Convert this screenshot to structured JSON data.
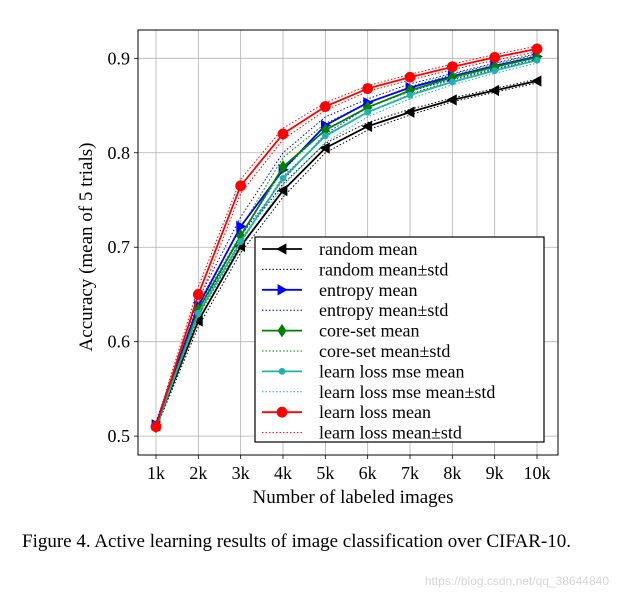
{
  "chart_data": {
    "type": "line",
    "title": "",
    "xlabel": "Number of labeled images",
    "ylabel": "Accuracy (mean of 5 trials)",
    "categories": [
      "1k",
      "2k",
      "3k",
      "4k",
      "5k",
      "6k",
      "7k",
      "8k",
      "9k",
      "10k"
    ],
    "ylim": [
      0.48,
      0.93
    ],
    "yticks": [
      0.5,
      0.6,
      0.7,
      0.8,
      0.9
    ],
    "ytick_labels": [
      "0.5",
      "0.6",
      "0.7",
      "0.8",
      "0.9"
    ],
    "grid": true,
    "legend_position": "lower-right",
    "series": [
      {
        "name": "random mean",
        "std_name": "random mean±std",
        "color": "#000000",
        "marker": "triangle-left",
        "values": [
          0.511,
          0.622,
          0.701,
          0.76,
          0.805,
          0.828,
          0.843,
          0.856,
          0.866,
          0.876
        ],
        "upper": [
          0.514,
          0.628,
          0.708,
          0.767,
          0.81,
          0.832,
          0.846,
          0.858,
          0.868,
          0.878
        ],
        "lower": [
          0.508,
          0.616,
          0.694,
          0.753,
          0.8,
          0.824,
          0.84,
          0.854,
          0.864,
          0.874
        ]
      },
      {
        "name": "entropy mean",
        "std_name": "entropy mean±std",
        "color": "#0000ff",
        "marker": "triangle-right",
        "values": [
          0.512,
          0.638,
          0.722,
          0.782,
          0.829,
          0.853,
          0.869,
          0.881,
          0.892,
          0.902
        ],
        "upper": [
          0.515,
          0.645,
          0.732,
          0.8,
          0.838,
          0.857,
          0.873,
          0.884,
          0.895,
          0.905
        ],
        "lower": [
          0.509,
          0.63,
          0.712,
          0.771,
          0.82,
          0.848,
          0.865,
          0.878,
          0.889,
          0.899
        ]
      },
      {
        "name": "core-set mean",
        "std_name": "core-set mean±std",
        "color": "#008000",
        "marker": "diamond",
        "values": [
          0.51,
          0.634,
          0.712,
          0.785,
          0.824,
          0.848,
          0.866,
          0.88,
          0.891,
          0.901
        ],
        "upper": [
          0.513,
          0.641,
          0.72,
          0.795,
          0.831,
          0.853,
          0.87,
          0.883,
          0.894,
          0.904
        ],
        "lower": [
          0.507,
          0.627,
          0.704,
          0.775,
          0.817,
          0.843,
          0.862,
          0.877,
          0.888,
          0.898
        ]
      },
      {
        "name": "learn loss mse mean",
        "std_name": "learn loss mse mean±std",
        "color": "#20b2aa",
        "marker": "small-circle",
        "values": [
          0.51,
          0.63,
          0.706,
          0.773,
          0.818,
          0.843,
          0.861,
          0.875,
          0.887,
          0.898
        ],
        "upper": [
          0.513,
          0.637,
          0.714,
          0.781,
          0.825,
          0.848,
          0.865,
          0.878,
          0.89,
          0.901
        ],
        "lower": [
          0.507,
          0.623,
          0.698,
          0.765,
          0.811,
          0.838,
          0.857,
          0.872,
          0.884,
          0.895
        ]
      },
      {
        "name": "learn loss mean",
        "std_name": "learn loss mean±std",
        "color": "#ff0000",
        "marker": "circle",
        "values": [
          0.51,
          0.65,
          0.765,
          0.82,
          0.849,
          0.868,
          0.88,
          0.891,
          0.901,
          0.91
        ],
        "upper": [
          0.513,
          0.658,
          0.772,
          0.826,
          0.853,
          0.871,
          0.883,
          0.894,
          0.904,
          0.913
        ],
        "lower": [
          0.507,
          0.642,
          0.757,
          0.814,
          0.845,
          0.865,
          0.877,
          0.888,
          0.898,
          0.907
        ]
      }
    ]
  },
  "caption": "Figure 4. Active learning results of image classification over CIFAR-10.",
  "watermark": "https://blog.csdn.net/qq_38644840"
}
